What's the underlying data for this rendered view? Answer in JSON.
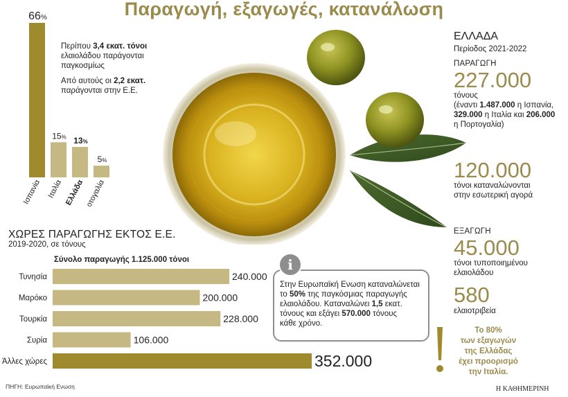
{
  "title": "Παραγωγή, εξαγωγές, κατανάλωση",
  "eu_note": {
    "p1_pre": "Περίπου ",
    "p1_bold": "3,4 εκατ. τόνοι",
    "p1_post": " ελαιολάδου παράγονται παγκοσμίως",
    "p2_pre": "Από αυτούς οι ",
    "p2_bold": "2,2 εκατ.",
    "p2_post": " παράγονται στην Ε.Ε."
  },
  "non_eu": {
    "title": "ΧΩΡΕΣ ΠΑΡΑΓΩΓΗΣ ΕΚΤΟΣ Ε.Ε.",
    "period": "2019-2020, σε τόνους",
    "total": "Σύνολο παραγωγής 1.125.000 τόνοι"
  },
  "greece": {
    "heading": "ΕΛΛΑΔΑ",
    "period": "Περίοδος 2021-2022",
    "production_caption": "ΠΑΡΑΓΩΓΗ",
    "production_value": "227.000",
    "production_unit": "τόνους",
    "comparison_line1": "(έναντι ",
    "comparison_b1": "1.487.000",
    "comparison_t1": " η Ισπανία,",
    "comparison_b2": "329.000",
    "comparison_t2": " η Ιταλία και ",
    "comparison_b3": "206.000",
    "comparison_t3": "η Πορτογαλία)",
    "consumption_value": "120.000",
    "consumption_line1": "τόνοι καταναλώνονται",
    "consumption_line2": "στην εσωτερική αγορά",
    "export_caption": "ΕΞΑΓΩΓΗ",
    "export_value": "45.000",
    "export_line1": "τόνοι τυποποιημένου",
    "export_line2": "ελαιολάδου",
    "mills_value": "580",
    "mills_label": "ελαιοτριβεία"
  },
  "info_box": {
    "icon": "info-icon",
    "l1": "Στην Ευρωπαϊκή Ενωση καταναλώνεται",
    "l2_pre": "το ",
    "l2_bold": "50%",
    "l2_post": " της παγκόσμιας παραγωγής",
    "l3_pre": "ελαιολάδου. Καταναλώνει ",
    "l3_bold": "1,5",
    "l3_post": " εκατ.",
    "l4_pre": "τόνους και εξάγει ",
    "l4_bold": "570.000",
    "l4_post": " τόνους",
    "l5": "κάθε χρόνο."
  },
  "export_note": {
    "l1": "Το 80%",
    "l2": "των εξαγωγών",
    "l3": "της Ελλάδας",
    "l4": "έχει προορισμό",
    "l5": "την Ιταλία."
  },
  "source": "ΠΗΓΗ: Ευρωπαϊκή Ενωση",
  "brand": "Η ΚΑΘΗΜΕΡΙΝΗ",
  "colors": {
    "accent": "#9a8a4c",
    "bar_dark": "#a08a2e",
    "bar_light": "#c6b883",
    "gray": "#8e8e8e"
  },
  "chart_data": [
    {
      "type": "bar",
      "orientation": "vertical",
      "categories": [
        "Ισπανία",
        "Ιταλία",
        "Ελλάδα",
        "Πορτογαλία"
      ],
      "values": [
        66,
        15,
        13,
        5
      ],
      "unit": "%",
      "highlight": "Ελλάδα",
      "ylim": [
        0,
        66
      ],
      "grid": false
    },
    {
      "type": "bar",
      "orientation": "horizontal",
      "categories": [
        "Τυνησία",
        "Μαρόκο",
        "Τουρκία",
        "Συρία",
        "Άλλες χώρες"
      ],
      "values": [
        240000,
        200000,
        228000,
        106000,
        352000
      ],
      "value_labels": [
        "240.000",
        "200.000",
        "228.000",
        "106.000",
        "352.000"
      ],
      "xlim": [
        0,
        352000
      ],
      "grid": false
    }
  ]
}
